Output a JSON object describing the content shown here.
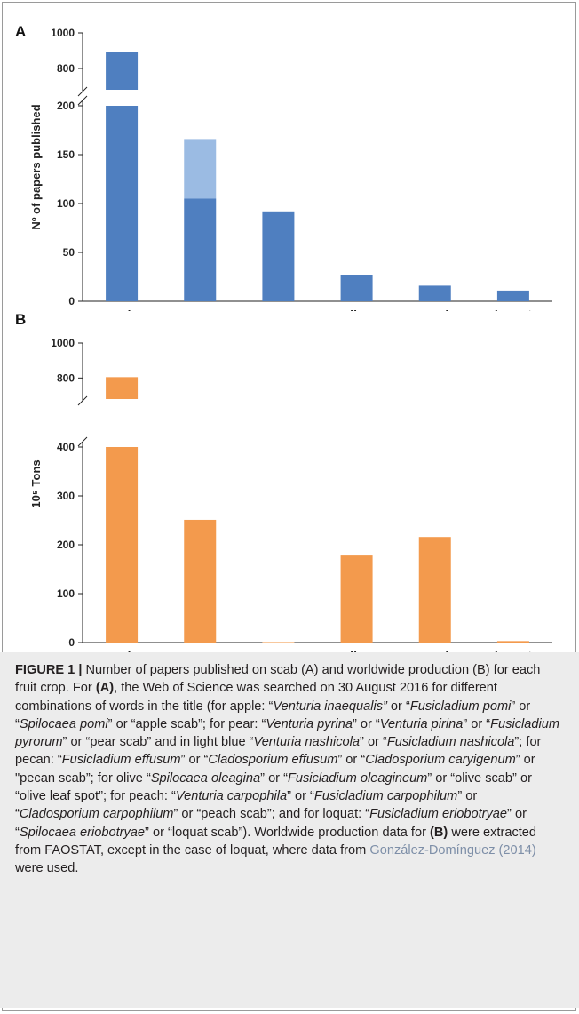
{
  "colors": {
    "panel_a_bar": "#4f7fc0",
    "panel_a_light_bar": "#9bbbe3",
    "panel_b_bar": "#f39a4d",
    "axis": "#222222",
    "caption_bg": "#ececec",
    "reference_link": "#7e8fa8"
  },
  "chart_data": [
    {
      "type": "bar",
      "panel": "A",
      "categories": [
        "apple",
        "pear",
        "pecan",
        "olive",
        "peach",
        "loquat"
      ],
      "ylabel": "Nº of papers published",
      "y_axis_broken": true,
      "ylim_lower": [
        0,
        200
      ],
      "ylim_upper": [
        700,
        1000
      ],
      "yticks_lower": [
        "0",
        "50",
        "100",
        "150",
        "200"
      ],
      "yticks_upper": [
        "800",
        "1000"
      ],
      "stacked": true,
      "series": [
        {
          "values": [
            890,
            105,
            92,
            27,
            16,
            11
          ],
          "color": "#4f7fc0"
        },
        {
          "values": [
            0,
            61,
            0,
            0,
            0,
            0
          ],
          "color": "#9bbbe3"
        }
      ]
    },
    {
      "type": "bar",
      "panel": "B",
      "categories": [
        "apple",
        "pear",
        "pecan",
        "olive",
        "peach",
        "loquat"
      ],
      "ylabel": "10⁵ Tons",
      "y_axis_broken": true,
      "ylim_lower": [
        0,
        400
      ],
      "ylim_upper": [
        700,
        1000
      ],
      "yticks_lower": [
        "0",
        "100",
        "200",
        "300",
        "400"
      ],
      "yticks_upper": [
        "800",
        "1000"
      ],
      "series": [
        {
          "values": [
            805,
            251,
            1,
            178,
            216,
            3
          ],
          "color": "#f39a4d"
        }
      ]
    }
  ],
  "caption": {
    "label": "FIGURE 1 |",
    "s1": " Number of papers published on scab (A) and worldwide production (B) for each fruit crop. For ",
    "bA": "(A)",
    "s2": ", the Web of Science was searched on 30 August 2016 for different combinations of words in the title (for apple: “",
    "i1": "Venturia inaequalis”",
    "s3": " or “",
    "i2": "Fusicladium pomi",
    "s4": "” or “",
    "i3": "Spilocaea pomi",
    "s5": "” or “apple scab”; for pear: “",
    "i4": "Venturia pyrina",
    "s6": "” or “",
    "i5": "Venturia pirina",
    "s7": "” or “",
    "i6": "Fusicladium pyrorum",
    "s8": "” or “pear scab” and in light blue “",
    "i7": "Venturia nashicola",
    "s9": "” or “",
    "i8": "Fusicladium nashicola",
    "s10": "”; for pecan: “",
    "i9": "Fusicladium effusum",
    "s11": "” or “",
    "i10": "Cladosporium effusum",
    "s12": "” or “",
    "i11": "Cladosporium caryigenum",
    "s13": "” or \"pecan scab”; for olive “",
    "i12": "Spilocaea oleagina",
    "s14": "” or “",
    "i13": "Fusicladium oleagineum",
    "s15": "” or “olive scab” or “olive leaf spot”; for peach: “",
    "i14": "Venturia carpophila",
    "s16": "” or “",
    "i15": "Fusicladium carpophilum",
    "s17": "” or “",
    "i16": "Cladosporium carpophilum",
    "s18": "” or “peach scab”; and for loquat: “",
    "i17": "Fusicladium eriobotryae",
    "s19": "” or “",
    "i18": "Spilocaea eriobotryae",
    "s20": "” or “loquat scab”). Worldwide production data for ",
    "bB": "(B)",
    "s21": " were extracted from FAOSTAT, except in the case of loquat, where data from ",
    "ref": "González-Domínguez (2014)",
    "s22": " were used."
  }
}
